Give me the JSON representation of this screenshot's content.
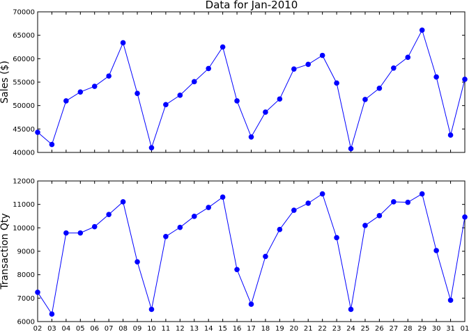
{
  "chart_data": [
    {
      "type": "line",
      "title": "Data for Jan-2010",
      "xlabel": "",
      "ylabel": "Sales ($)",
      "ylim": [
        40000,
        70000
      ],
      "yticks": [
        "40000",
        "45000",
        "50000",
        "55000",
        "60000",
        "65000",
        "70000"
      ],
      "grid": false,
      "x": [
        "02",
        "03",
        "04",
        "05",
        "06",
        "07",
        "08",
        "09",
        "10",
        "11",
        "12",
        "13",
        "14",
        "15",
        "16",
        "17",
        "18",
        "19",
        "20",
        "21",
        "22",
        "23",
        "24",
        "25",
        "26",
        "27",
        "28",
        "29",
        "30",
        "31",
        "01"
      ],
      "series": [
        {
          "name": "",
          "color": "#0000ff",
          "values": [
            44300,
            41700,
            51000,
            52900,
            54100,
            56300,
            63400,
            52600,
            41000,
            50200,
            52200,
            55100,
            57900,
            62500,
            51000,
            43300,
            48600,
            51400,
            57800,
            58800,
            60700,
            54800,
            40800,
            51300,
            53700,
            58000,
            60300,
            66100,
            56100,
            43700,
            55600
          ]
        }
      ]
    },
    {
      "type": "line",
      "title": "",
      "xlabel": "",
      "ylabel": "Transaction Qty",
      "ylim": [
        6000,
        12000
      ],
      "yticks": [
        "6000",
        "7000",
        "8000",
        "9000",
        "10000",
        "11000",
        "12000"
      ],
      "grid": false,
      "x": [
        "02",
        "03",
        "04",
        "05",
        "06",
        "07",
        "08",
        "09",
        "10",
        "11",
        "12",
        "13",
        "14",
        "15",
        "16",
        "17",
        "18",
        "19",
        "20",
        "21",
        "22",
        "23",
        "24",
        "25",
        "26",
        "27",
        "28",
        "29",
        "30",
        "31",
        "01"
      ],
      "series": [
        {
          "name": "",
          "color": "#0000ff",
          "values": [
            7250,
            6320,
            9780,
            9780,
            10050,
            10570,
            11110,
            8550,
            6520,
            9630,
            10020,
            10490,
            10870,
            11310,
            8220,
            6740,
            8780,
            9930,
            10750,
            11050,
            11450,
            9580,
            6520,
            10100,
            10520,
            11110,
            11090,
            11450,
            9030,
            6910,
            10460
          ]
        }
      ]
    }
  ]
}
